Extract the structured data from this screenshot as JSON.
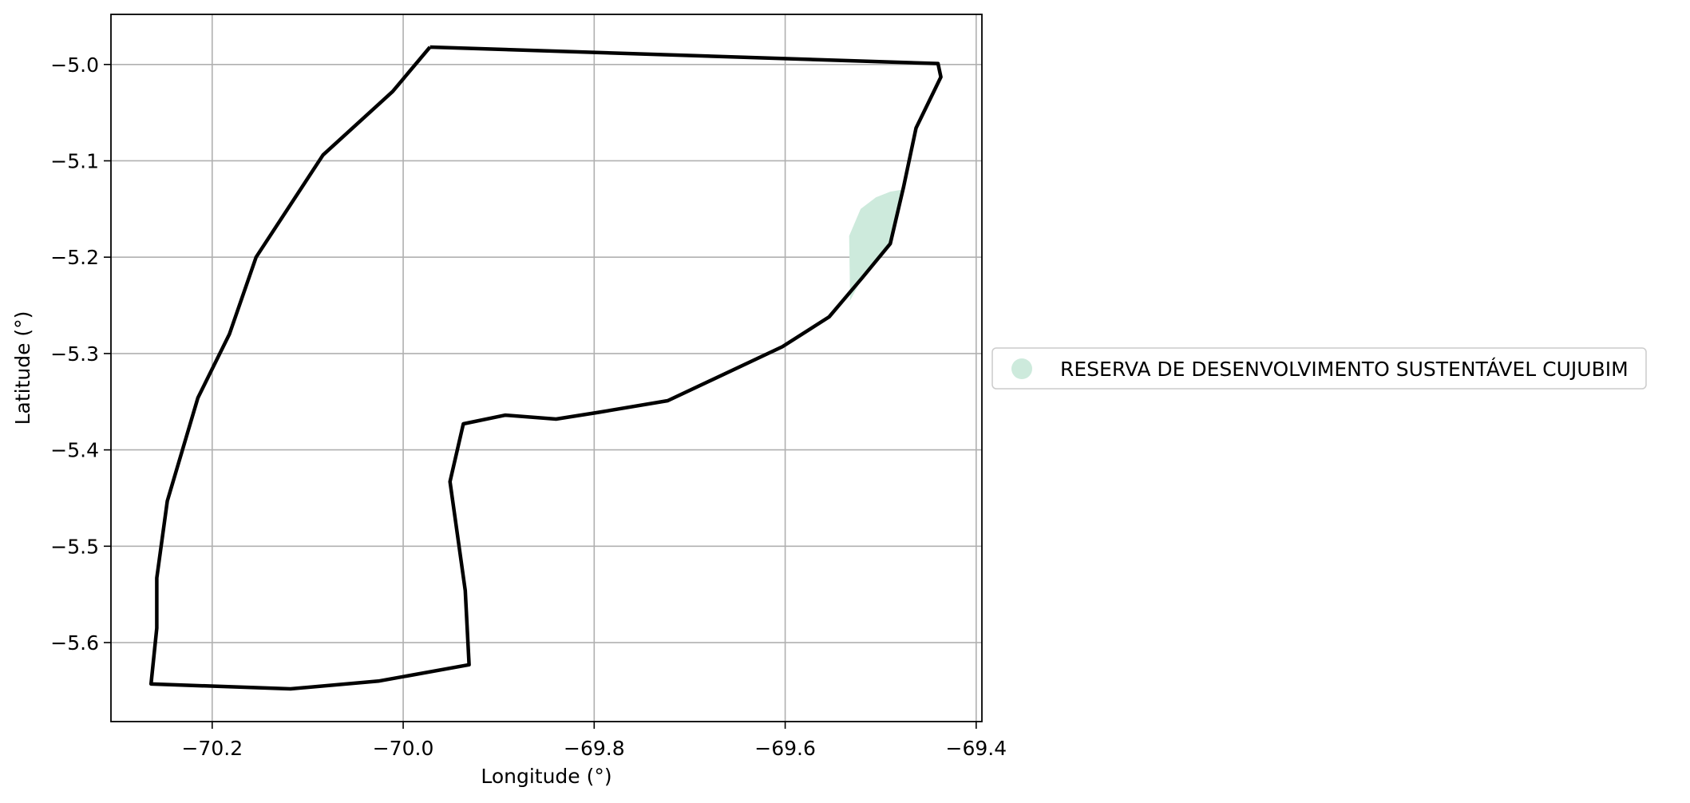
{
  "chart_data": {
    "type": "map",
    "xlabel": "Longitude (°)",
    "ylabel": "Latitude (°)",
    "xlim": [
      -70.306,
      -69.394
    ],
    "ylim": [
      -5.682,
      -4.948
    ],
    "grid": true,
    "x_ticks": [
      {
        "value": -70.2,
        "label": "−70.2"
      },
      {
        "value": -70.0,
        "label": "−70.0"
      },
      {
        "value": -69.8,
        "label": "−69.8"
      },
      {
        "value": -69.6,
        "label": "−69.6"
      },
      {
        "value": -69.4,
        "label": "−69.4"
      }
    ],
    "y_ticks": [
      {
        "value": -5.0,
        "label": "−5.0"
      },
      {
        "value": -5.1,
        "label": "−5.1"
      },
      {
        "value": -5.2,
        "label": "−5.2"
      },
      {
        "value": -5.3,
        "label": "−5.3"
      },
      {
        "value": -5.4,
        "label": "−5.4"
      },
      {
        "value": -5.5,
        "label": "−5.5"
      },
      {
        "value": -5.6,
        "label": "−5.6"
      }
    ],
    "boundary": {
      "color": "#000000",
      "coordinates": [
        [
          -69.972,
          -4.982
        ],
        [
          -69.44,
          -4.999
        ],
        [
          -69.437,
          -5.013
        ],
        [
          -69.463,
          -5.066
        ],
        [
          -69.476,
          -5.127
        ],
        [
          -69.49,
          -5.186
        ],
        [
          -69.519,
          -5.221
        ],
        [
          -69.554,
          -5.262
        ],
        [
          -69.603,
          -5.293
        ],
        [
          -69.723,
          -5.349
        ],
        [
          -69.795,
          -5.361
        ],
        [
          -69.84,
          -5.368
        ],
        [
          -69.893,
          -5.364
        ],
        [
          -69.937,
          -5.373
        ],
        [
          -69.951,
          -5.433
        ],
        [
          -69.935,
          -5.546
        ],
        [
          -69.931,
          -5.623
        ],
        [
          -70.026,
          -5.64
        ],
        [
          -70.118,
          -5.648
        ],
        [
          -70.264,
          -5.643
        ],
        [
          -70.258,
          -5.585
        ],
        [
          -70.258,
          -5.533
        ],
        [
          -70.247,
          -5.453
        ],
        [
          -70.215,
          -5.346
        ],
        [
          -70.182,
          -5.28
        ],
        [
          -70.154,
          -5.2
        ],
        [
          -70.084,
          -5.094
        ],
        [
          -70.011,
          -5.028
        ],
        [
          -69.972,
          -4.982
        ]
      ]
    },
    "series": [
      {
        "name": "RESERVA DE DESENVOLVIMENTO SUSTENTÁVEL CUJUBIM",
        "color": "#cdeadc",
        "coordinates": [
          [
            -69.532,
            -5.245
          ],
          [
            -69.533,
            -5.178
          ],
          [
            -69.521,
            -5.15
          ],
          [
            -69.505,
            -5.138
          ],
          [
            -69.49,
            -5.132
          ],
          [
            -69.478,
            -5.13
          ],
          [
            -69.49,
            -5.186
          ],
          [
            -69.519,
            -5.221
          ],
          [
            -69.532,
            -5.245
          ]
        ]
      }
    ],
    "legend_placement": "center-right"
  }
}
